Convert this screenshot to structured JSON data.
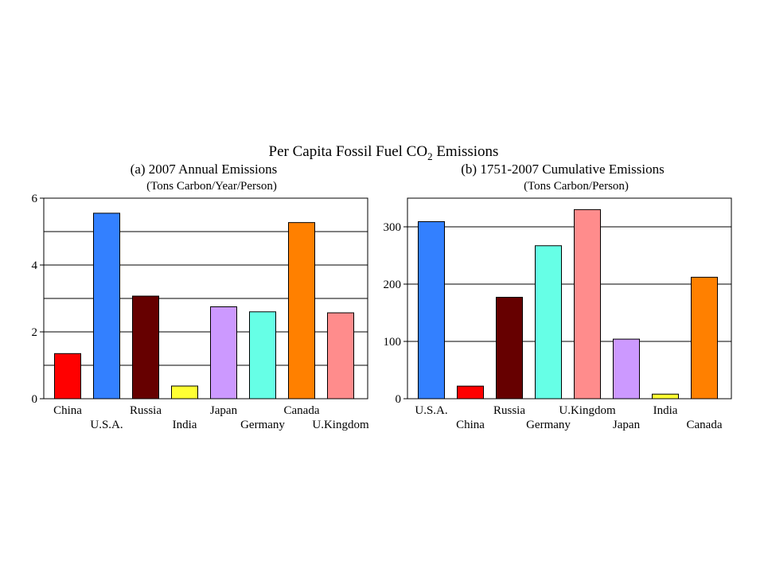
{
  "figure": {
    "title_main": "Per Capita Fossil Fuel CO",
    "title_sub": "2",
    "title_end": " Emissions"
  },
  "chart_data": [
    {
      "type": "bar",
      "panel_title": "(a)  2007 Annual Emissions",
      "panel_subtitle": "(Tons Carbon/Year/Person)",
      "categories": [
        "China",
        "U.S.A.",
        "Russia",
        "India",
        "Japan",
        "Germany",
        "Canada",
        "U.Kingdom"
      ],
      "values": [
        1.35,
        5.55,
        3.07,
        0.38,
        2.75,
        2.6,
        5.27,
        2.57
      ],
      "colors": [
        "#ff0000",
        "#3380ff",
        "#660000",
        "#ffff33",
        "#cc99ff",
        "#66ffe6",
        "#ff8000",
        "#ff8c8c"
      ],
      "ylim": [
        0,
        6
      ],
      "yticks": [
        0,
        2,
        4,
        6
      ],
      "gridlines": [
        1,
        2,
        3,
        4,
        5
      ],
      "label_stagger": "alternating",
      "grid": true
    },
    {
      "type": "bar",
      "panel_title": "(b)  1751-2007 Cumulative Emissions",
      "panel_subtitle": "(Tons Carbon/Person)",
      "categories": [
        "U.S.A.",
        "China",
        "Russia",
        "Germany",
        "U.Kingdom",
        "Japan",
        "India",
        "Canada"
      ],
      "values": [
        309,
        22,
        177,
        267,
        330,
        104,
        8,
        212
      ],
      "colors": [
        "#3380ff",
        "#ff0000",
        "#660000",
        "#66ffe6",
        "#ff8c8c",
        "#cc99ff",
        "#ffff33",
        "#ff8000"
      ],
      "ylim": [
        0,
        350
      ],
      "yticks": [
        0,
        100,
        200,
        300
      ],
      "gridlines": [
        100,
        200,
        300
      ],
      "label_stagger": "alternating",
      "grid": true
    }
  ]
}
